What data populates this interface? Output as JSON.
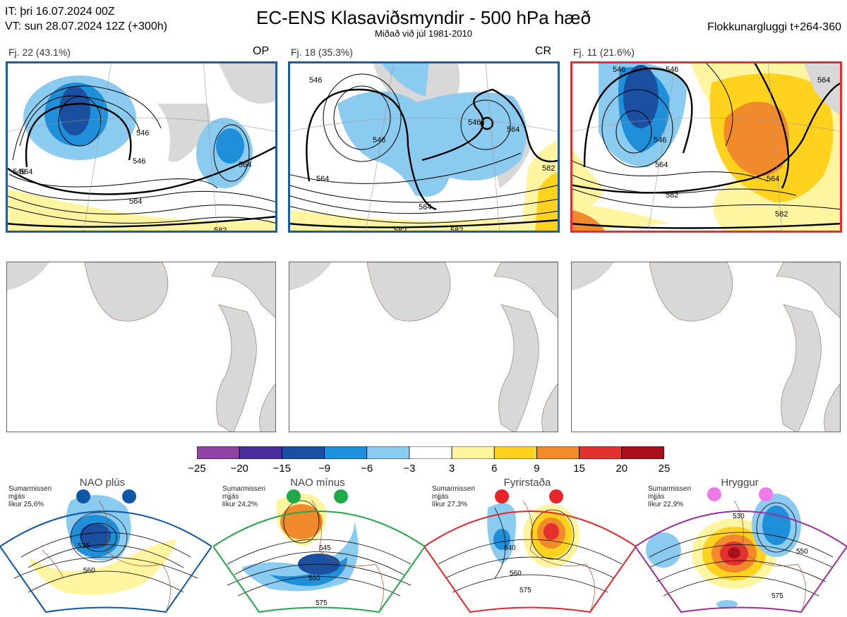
{
  "header": {
    "it_line": "IT: þri 16.07.2024 00Z",
    "vt_line": "VT: sun 28.07.2024 12Z  (+300h)",
    "title": "EC-ENS Klasaviðsmyndir - 500 hPa hæð",
    "subtitle": "Miðað við júl 1981-2010",
    "window": "Flokkunargluggi t+264-360"
  },
  "clusters": [
    {
      "label": "Fj. 22 (43.1%)",
      "tag": "OP",
      "frame_color": "#1a5ea8",
      "contour_labels": [
        "546",
        "546",
        "546",
        "564",
        "564",
        "564",
        "582"
      ]
    },
    {
      "label": "Fj. 18 (35.3%)",
      "tag": "CR",
      "frame_color": "#1a5ea8",
      "contour_labels": [
        "546",
        "546",
        "564",
        "546",
        "564",
        "564",
        "582",
        "582",
        "582"
      ]
    },
    {
      "label": "Fj. 11 (21.6%)",
      "tag": "",
      "frame_color": "#e23030",
      "contour_labels": [
        "546",
        "546",
        "546",
        "564",
        "564",
        "582",
        "582",
        "564"
      ]
    }
  ],
  "colorbar": {
    "ticks": [
      "−25",
      "−20",
      "−15",
      "−9",
      "−6",
      "−3",
      "3",
      "6",
      "9",
      "15",
      "20",
      "25"
    ],
    "colors": [
      "#8e44a0",
      "#4a2e9a",
      "#1b4fa0",
      "#1e8fd8",
      "#8ccbf0",
      "#ffffff",
      "#fff5a0",
      "#ffd21e",
      "#f08a2a",
      "#e53030",
      "#a8101c"
    ]
  },
  "regimes": [
    {
      "title": "NAO plús",
      "line1": "Sumarmisseri",
      "line2": "mjjás",
      "line3": "líkur 25,6%",
      "color": "#0d56a8",
      "contours": [
        "535",
        "560"
      ]
    },
    {
      "title": "NAO mínus",
      "line1": "Sumarmisseri",
      "line2": "mjjás",
      "line3": "líkur 24,2%",
      "color": "#22a84a",
      "contours": [
        "545",
        "560",
        "575"
      ]
    },
    {
      "title": "Fyrirstaða",
      "line1": "Sumarmisseri",
      "line2": "mjjás",
      "line3": "líkur 27,3%",
      "color": "#e6262a",
      "contours": [
        "540",
        "560",
        "575"
      ]
    },
    {
      "title": "Hryggur",
      "line1": "Sumarmisseri",
      "line2": "mjjás",
      "line3": "líkur 22,9%",
      "color": "#9c2f9c",
      "dot_color": "#ee7ae8",
      "contours": [
        "530",
        "550",
        "575"
      ]
    }
  ]
}
